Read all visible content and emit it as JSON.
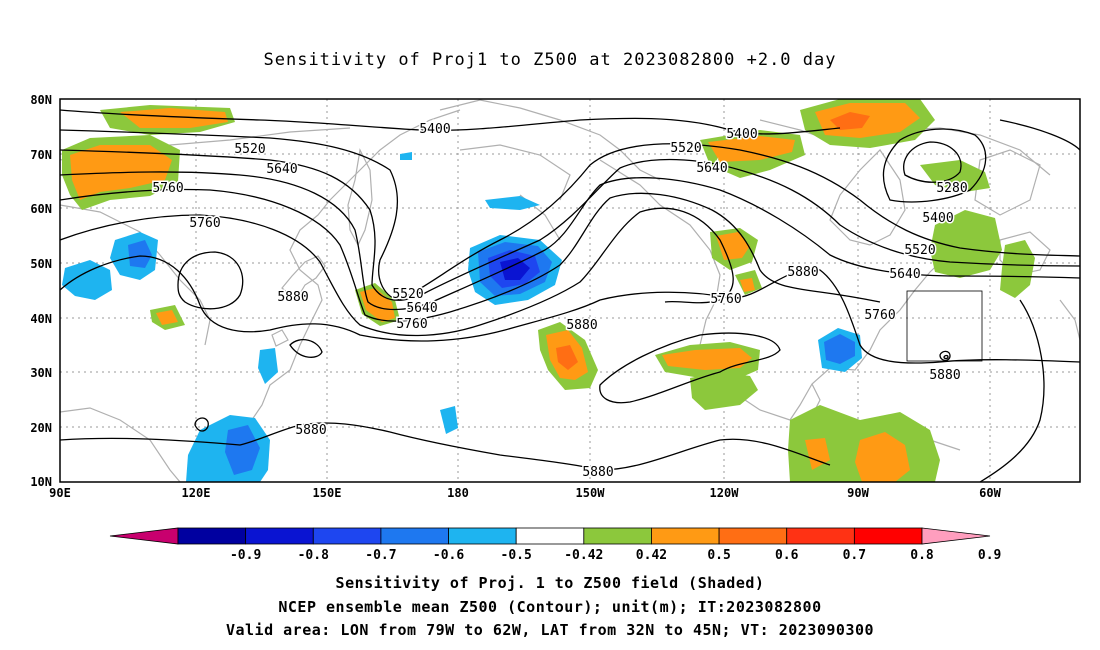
{
  "title": "Sensitivity of Proj1 to Z500 at 2023082800 +2.0 day",
  "latitude_labels": [
    "80N",
    "70N",
    "60N",
    "50N",
    "40N",
    "30N",
    "20N",
    "10N"
  ],
  "longitude_labels": [
    "90E",
    "120E",
    "150E",
    "180",
    "150W",
    "120W",
    "90W",
    "60W"
  ],
  "contour_labels": [
    {
      "text": "5400"
    },
    {
      "text": "5520"
    },
    {
      "text": "5640"
    },
    {
      "text": "5760"
    },
    {
      "text": "5760"
    },
    {
      "text": "5880"
    },
    {
      "text": "5520"
    },
    {
      "text": "5640"
    },
    {
      "text": "5760"
    },
    {
      "text": "5880"
    },
    {
      "text": "5880"
    },
    {
      "text": "5880"
    },
    {
      "text": "5400"
    },
    {
      "text": "5520"
    },
    {
      "text": "5640"
    },
    {
      "text": "5760"
    },
    {
      "text": "5880"
    },
    {
      "text": "5280"
    },
    {
      "text": "5400"
    },
    {
      "text": "5520"
    },
    {
      "text": "5640"
    },
    {
      "text": "5760"
    },
    {
      "text": "5880"
    }
  ],
  "colorbar": {
    "labels": [
      "-0.9",
      "-0.8",
      "-0.7",
      "-0.6",
      "-0.5",
      "-0.42",
      "0.42",
      "0.5",
      "0.6",
      "0.7",
      "0.8",
      "0.9"
    ],
    "colors": [
      "#c8006e",
      "#0000a0",
      "#0a14d2",
      "#1e46f0",
      "#1e78f0",
      "#1eb4f0",
      "#ffffff",
      "#8cc83c",
      "#ff9a14",
      "#ff6e14",
      "#ff3214",
      "#ff0000",
      "#ff9ebe"
    ]
  },
  "captions": {
    "line1": "Sensitivity of Proj. 1 to Z500 field (Shaded)",
    "line2": "NCEP ensemble mean Z500 (Contour); unit(m); IT:2023082800",
    "line3": "Valid area: LON from 79W to 62W, LAT from 32N to 45N; VT: 2023090300"
  }
}
